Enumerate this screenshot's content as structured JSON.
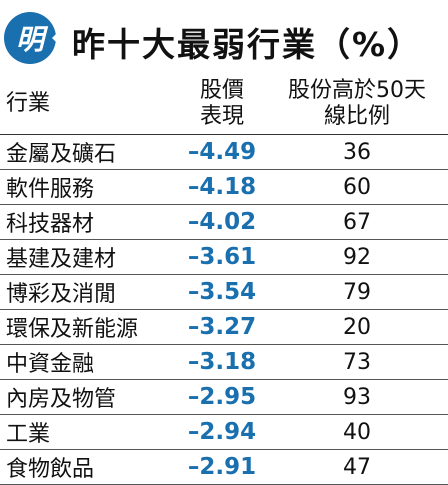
{
  "header": {
    "badge": "明",
    "title": "昨十大最弱行業（%）"
  },
  "table": {
    "columns": [
      "行業",
      "股價表現",
      "股份高於50天線比例"
    ],
    "column_lines": [
      [
        "行業"
      ],
      [
        "股價",
        "表現"
      ],
      [
        "股份高於50天",
        "線比例"
      ]
    ],
    "rows": [
      {
        "industry": "金屬及礦石",
        "performance": "–4.49",
        "above_50d": "36"
      },
      {
        "industry": "軟件服務",
        "performance": "–4.18",
        "above_50d": "60"
      },
      {
        "industry": "科技器材",
        "performance": "–4.02",
        "above_50d": "67"
      },
      {
        "industry": "基建及建材",
        "performance": "–3.61",
        "above_50d": "92"
      },
      {
        "industry": "博彩及消閒",
        "performance": "–3.54",
        "above_50d": "79"
      },
      {
        "industry": "環保及新能源",
        "performance": "–3.27",
        "above_50d": "20"
      },
      {
        "industry": "中資金融",
        "performance": "–3.18",
        "above_50d": "73"
      },
      {
        "industry": "內房及物管",
        "performance": "–2.95",
        "above_50d": "93"
      },
      {
        "industry": "工業",
        "performance": "–2.94",
        "above_50d": "40"
      },
      {
        "industry": "食物飲品",
        "performance": "–2.91",
        "above_50d": "47"
      }
    ]
  },
  "colors": {
    "accent": "#1a6fae",
    "text": "#111111"
  }
}
